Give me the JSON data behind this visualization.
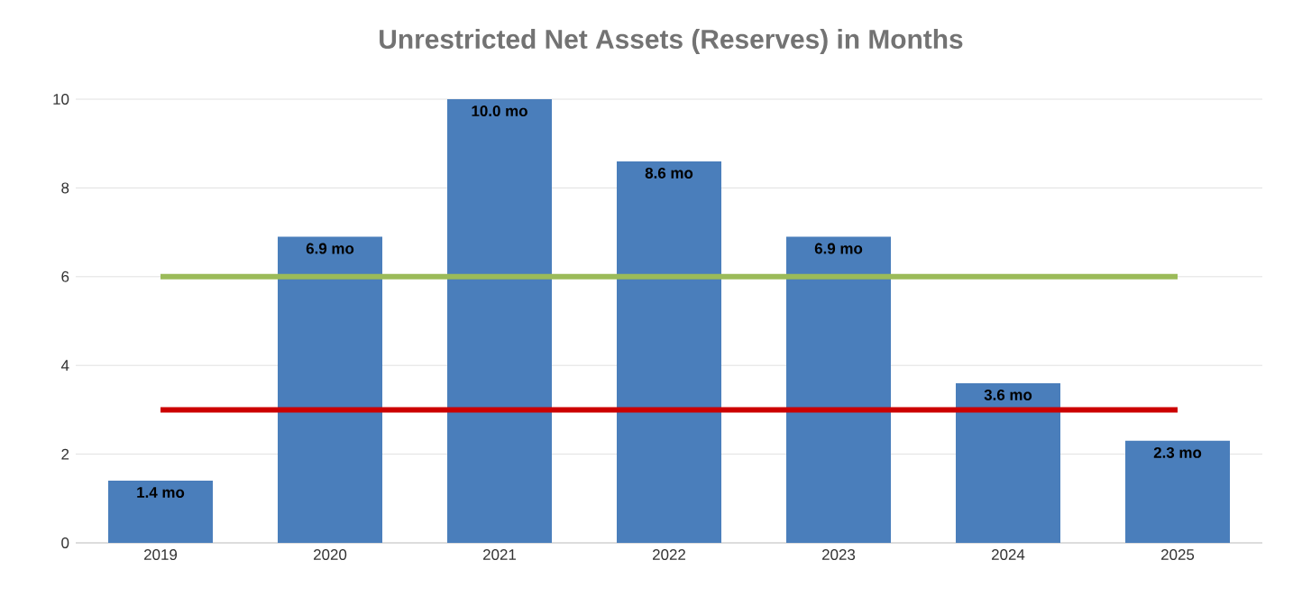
{
  "chart_data": {
    "type": "bar",
    "title": "Unrestricted Net Assets (Reserves) in Months",
    "categories": [
      "2019",
      "2020",
      "2021",
      "2022",
      "2023",
      "2024",
      "2025"
    ],
    "series": [
      {
        "color": "#4a7ebb",
        "values": [
          1.4,
          6.9,
          10.0,
          8.6,
          6.9,
          3.6,
          2.3
        ],
        "value_labels": [
          "1.4 mo",
          "6.9 mo",
          "10.0 mo",
          "8.6 mo",
          "6.9 mo",
          "3.6 mo",
          "2.3 mo"
        ]
      },
      {
        "type": "line",
        "color": "#9bbb59",
        "values": [
          6,
          6,
          6,
          6,
          6,
          6,
          6
        ]
      },
      {
        "type": "line",
        "color": "#cc0000",
        "values": [
          3,
          3,
          3,
          3,
          3,
          3,
          3
        ]
      }
    ],
    "ylim": [
      0,
      10
    ],
    "yticks": [
      0,
      2,
      4,
      6,
      8,
      10
    ],
    "grid": "y",
    "marker": "none",
    "line_style": "solid"
  }
}
